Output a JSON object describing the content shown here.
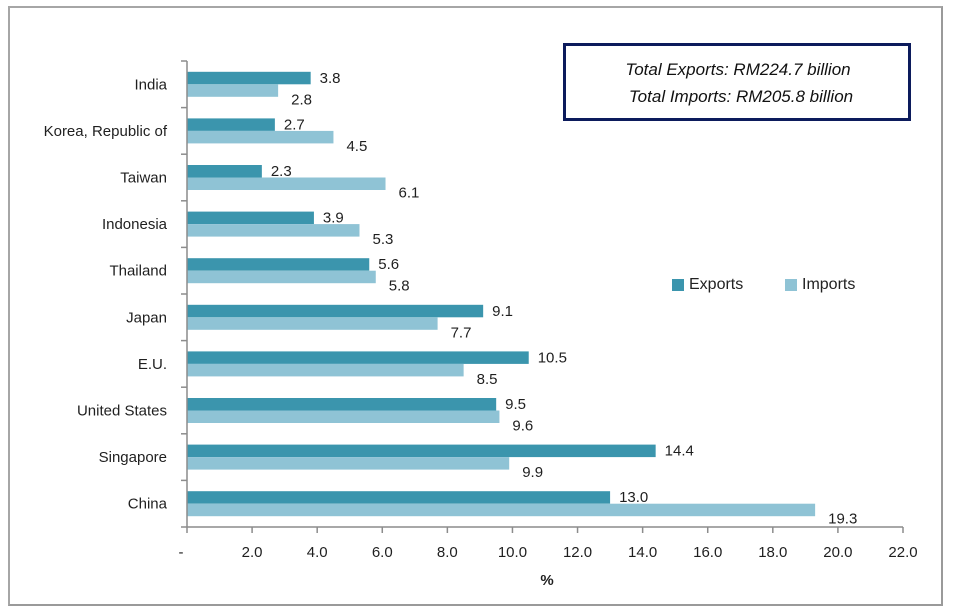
{
  "info_box": {
    "total_exports": "Total Exports: RM224.7 billion",
    "total_imports": "Total Imports: RM205.8 billion"
  },
  "colors": {
    "exports": "#3b95ad",
    "imports": "#8fc3d5",
    "axis": "#8c8c8c",
    "info_border": "#0c1b5c"
  },
  "chart_data": {
    "type": "bar",
    "orientation": "horizontal",
    "title": "",
    "xlabel": "%",
    "ylabel": "",
    "xlim": [
      0,
      22
    ],
    "x_ticks": [
      "-",
      "2.0",
      "4.0",
      "6.0",
      "8.0",
      "10.0",
      "12.0",
      "14.0",
      "16.0",
      "18.0",
      "20.0",
      "22.0"
    ],
    "grid": false,
    "legend": {
      "position": "right",
      "entries": [
        "Exports",
        "Imports"
      ]
    },
    "categories": [
      "India",
      "Korea, Republic of",
      "Taiwan",
      "Indonesia",
      "Thailand",
      "Japan",
      "E.U.",
      "United States",
      "Singapore",
      "China"
    ],
    "series": [
      {
        "name": "Exports",
        "values": [
          3.8,
          2.7,
          2.3,
          3.9,
          5.6,
          9.1,
          10.5,
          9.5,
          14.4,
          13.0
        ],
        "labels": [
          "3.8",
          "2.7",
          "2.3",
          "3.9",
          "5.6",
          "9.1",
          "10.5",
          "9.5",
          "14.4",
          "13.0"
        ]
      },
      {
        "name": "Imports",
        "values": [
          2.8,
          4.5,
          6.1,
          5.3,
          5.8,
          7.7,
          8.5,
          9.6,
          9.9,
          19.3
        ],
        "labels": [
          "2.8",
          "4.5",
          "6.1",
          "5.3",
          "5.8",
          "7.7",
          "8.5",
          "9.6",
          "9.9",
          "19.3"
        ]
      }
    ]
  }
}
